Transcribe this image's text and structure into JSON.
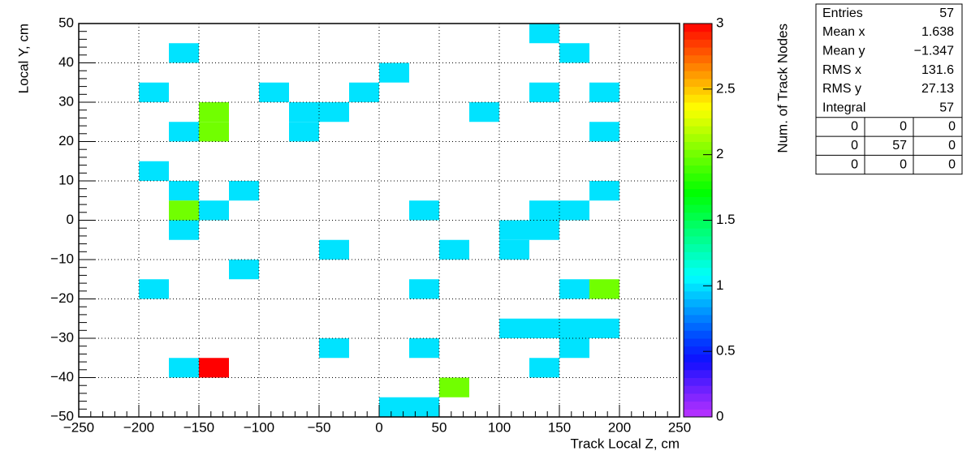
{
  "chart_data": {
    "type": "heatmap",
    "xlabel": "Track Local Z, cm",
    "ylabel": "Local Y, cm",
    "zlabel": "Num. of Track Nodes",
    "xlim": [
      -250,
      250
    ],
    "ylim": [
      -50,
      50
    ],
    "zlim": [
      0,
      3
    ],
    "xticks": [
      {
        "value": -250,
        "label": "−250"
      },
      {
        "value": -200,
        "label": "−200"
      },
      {
        "value": -150,
        "label": "−150"
      },
      {
        "value": -100,
        "label": "−100"
      },
      {
        "value": -50,
        "label": "−50"
      },
      0,
      50,
      100,
      150,
      200,
      250
    ],
    "yticks": [
      {
        "value": -50,
        "label": "−50"
      },
      {
        "value": -40,
        "label": "−40"
      },
      {
        "value": -30,
        "label": "−30"
      },
      {
        "value": -20,
        "label": "−20"
      },
      {
        "value": -10,
        "label": "−10"
      },
      0,
      10,
      20,
      30,
      40,
      50
    ],
    "zticks": [
      0,
      0.5,
      1,
      1.5,
      2,
      2.5,
      3
    ],
    "grid": true,
    "cells": [
      {
        "x": [
          125,
          150
        ],
        "y": [
          45,
          50
        ],
        "value": 1
      },
      {
        "x": [
          -175,
          -150
        ],
        "y": [
          40,
          45
        ],
        "value": 1
      },
      {
        "x": [
          150,
          175
        ],
        "y": [
          40,
          45
        ],
        "value": 1
      },
      {
        "x": [
          0,
          25
        ],
        "y": [
          35,
          40
        ],
        "value": 1
      },
      {
        "x": [
          -200,
          -175
        ],
        "y": [
          30,
          35
        ],
        "value": 1
      },
      {
        "x": [
          -100,
          -75
        ],
        "y": [
          30,
          35
        ],
        "value": 1
      },
      {
        "x": [
          -25,
          0
        ],
        "y": [
          30,
          35
        ],
        "value": 1
      },
      {
        "x": [
          125,
          150
        ],
        "y": [
          30,
          35
        ],
        "value": 1
      },
      {
        "x": [
          175,
          200
        ],
        "y": [
          30,
          35
        ],
        "value": 1
      },
      {
        "x": [
          -150,
          -125
        ],
        "y": [
          25,
          30
        ],
        "value": 2
      },
      {
        "x": [
          -75,
          -50
        ],
        "y": [
          25,
          30
        ],
        "value": 1
      },
      {
        "x": [
          -50,
          -25
        ],
        "y": [
          25,
          30
        ],
        "value": 1
      },
      {
        "x": [
          75,
          100
        ],
        "y": [
          25,
          30
        ],
        "value": 1
      },
      {
        "x": [
          -175,
          -150
        ],
        "y": [
          20,
          25
        ],
        "value": 1
      },
      {
        "x": [
          -150,
          -125
        ],
        "y": [
          20,
          25
        ],
        "value": 2
      },
      {
        "x": [
          -75,
          -50
        ],
        "y": [
          20,
          25
        ],
        "value": 1
      },
      {
        "x": [
          175,
          200
        ],
        "y": [
          20,
          25
        ],
        "value": 1
      },
      {
        "x": [
          -200,
          -175
        ],
        "y": [
          10,
          15
        ],
        "value": 1
      },
      {
        "x": [
          -175,
          -150
        ],
        "y": [
          5,
          10
        ],
        "value": 1
      },
      {
        "x": [
          -125,
          -100
        ],
        "y": [
          5,
          10
        ],
        "value": 1
      },
      {
        "x": [
          175,
          200
        ],
        "y": [
          5,
          10
        ],
        "value": 1
      },
      {
        "x": [
          -175,
          -150
        ],
        "y": [
          0,
          5
        ],
        "value": 2
      },
      {
        "x": [
          -150,
          -125
        ],
        "y": [
          0,
          5
        ],
        "value": 1
      },
      {
        "x": [
          25,
          50
        ],
        "y": [
          0,
          5
        ],
        "value": 1
      },
      {
        "x": [
          125,
          150
        ],
        "y": [
          0,
          5
        ],
        "value": 1
      },
      {
        "x": [
          150,
          175
        ],
        "y": [
          0,
          5
        ],
        "value": 1
      },
      {
        "x": [
          -175,
          -150
        ],
        "y": [
          -5,
          0
        ],
        "value": 1
      },
      {
        "x": [
          100,
          125
        ],
        "y": [
          -5,
          0
        ],
        "value": 1
      },
      {
        "x": [
          125,
          150
        ],
        "y": [
          -5,
          0
        ],
        "value": 1
      },
      {
        "x": [
          -50,
          -25
        ],
        "y": [
          -10,
          -5
        ],
        "value": 1
      },
      {
        "x": [
          50,
          75
        ],
        "y": [
          -10,
          -5
        ],
        "value": 1
      },
      {
        "x": [
          100,
          125
        ],
        "y": [
          -10,
          -5
        ],
        "value": 1
      },
      {
        "x": [
          -125,
          -100
        ],
        "y": [
          -15,
          -10
        ],
        "value": 1
      },
      {
        "x": [
          -200,
          -175
        ],
        "y": [
          -20,
          -15
        ],
        "value": 1
      },
      {
        "x": [
          25,
          50
        ],
        "y": [
          -20,
          -15
        ],
        "value": 1
      },
      {
        "x": [
          150,
          175
        ],
        "y": [
          -20,
          -15
        ],
        "value": 1
      },
      {
        "x": [
          175,
          200
        ],
        "y": [
          -20,
          -15
        ],
        "value": 2
      },
      {
        "x": [
          100,
          125
        ],
        "y": [
          -30,
          -25
        ],
        "value": 1
      },
      {
        "x": [
          125,
          150
        ],
        "y": [
          -30,
          -25
        ],
        "value": 1
      },
      {
        "x": [
          150,
          175
        ],
        "y": [
          -30,
          -25
        ],
        "value": 1
      },
      {
        "x": [
          175,
          200
        ],
        "y": [
          -30,
          -25
        ],
        "value": 1
      },
      {
        "x": [
          -50,
          -25
        ],
        "y": [
          -35,
          -30
        ],
        "value": 1
      },
      {
        "x": [
          25,
          50
        ],
        "y": [
          -35,
          -30
        ],
        "value": 1
      },
      {
        "x": [
          150,
          175
        ],
        "y": [
          -35,
          -30
        ],
        "value": 1
      },
      {
        "x": [
          -175,
          -150
        ],
        "y": [
          -40,
          -35
        ],
        "value": 1
      },
      {
        "x": [
          -150,
          -125
        ],
        "y": [
          -40,
          -35
        ],
        "value": 3
      },
      {
        "x": [
          125,
          150
        ],
        "y": [
          -40,
          -35
        ],
        "value": 1
      },
      {
        "x": [
          50,
          75
        ],
        "y": [
          -45,
          -40
        ],
        "value": 2
      },
      {
        "x": [
          0,
          25
        ],
        "y": [
          -50,
          -45
        ],
        "value": 1
      },
      {
        "x": [
          25,
          50
        ],
        "y": [
          -50,
          -45
        ],
        "value": 1
      }
    ],
    "stats": {
      "rows": [
        {
          "label": "Entries",
          "value": 57
        },
        {
          "label": "Mean x",
          "value": 1.638
        },
        {
          "label": "Mean y",
          "value": {
            "value": -1.347,
            "label": "−1.347"
          }
        },
        {
          "label": "RMS x",
          "value": 131.6
        },
        {
          "label": "RMS y",
          "value": 27.13
        },
        {
          "label": "Integral",
          "value": 57
        }
      ],
      "overflow": [
        [
          0,
          0,
          0
        ],
        [
          0,
          57,
          0
        ],
        [
          0,
          0,
          0
        ]
      ]
    }
  }
}
